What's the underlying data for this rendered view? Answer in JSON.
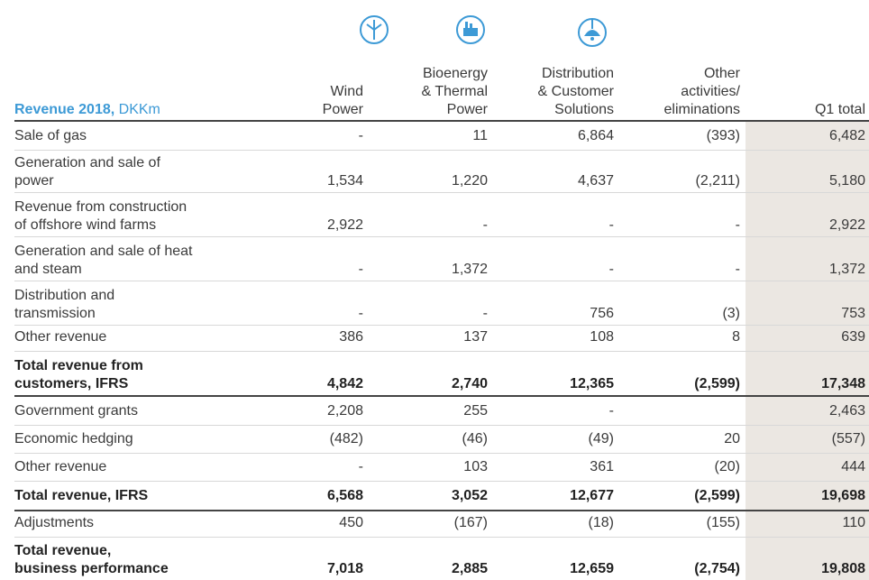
{
  "table": {
    "title": "Revenue 2018,",
    "unit": "DKKm",
    "columns": [
      [
        "Wind",
        "Power"
      ],
      [
        "Bioenergy",
        "& Thermal",
        "Power"
      ],
      [
        "Distribution",
        "& Customer",
        "Solutions"
      ],
      [
        "Other",
        "activities/",
        "eliminations"
      ],
      [
        "Q1 total"
      ]
    ],
    "rows": [
      {
        "label": [
          "Sale of gas"
        ],
        "cells": [
          "-",
          "11",
          "6,864",
          "(393)",
          "6,482"
        ]
      },
      {
        "label": [
          "Generation and sale of",
          "power"
        ],
        "cells": [
          "1,534",
          "1,220",
          "4,637",
          "(2,211)",
          "5,180"
        ]
      },
      {
        "label": [
          "Revenue from construction",
          "of offshore wind farms"
        ],
        "cells": [
          "2,922",
          "-",
          "-",
          "-",
          "2,922"
        ]
      },
      {
        "label": [
          "Generation and sale of heat",
          "and steam"
        ],
        "cells": [
          "-",
          "1,372",
          "-",
          "-",
          "1,372"
        ]
      },
      {
        "label": [
          "Distribution and",
          "transmission"
        ],
        "cells": [
          "-",
          "-",
          "756",
          "(3)",
          "753"
        ]
      },
      {
        "label": [
          "Other revenue"
        ],
        "cells": [
          "386",
          "137",
          "108",
          "8",
          "639"
        ]
      },
      {
        "label": [
          "Total revenue from",
          "customers, IFRS"
        ],
        "cells": [
          "4,842",
          "2,740",
          "12,365",
          "(2,599)",
          "17,348"
        ],
        "bold": true
      },
      {
        "label": [
          "Government grants"
        ],
        "cells": [
          "2,208",
          "255",
          "-",
          null,
          "2,463"
        ]
      },
      {
        "label": [
          "Economic hedging"
        ],
        "cells": [
          "(482)",
          "(46)",
          "(49)",
          "20",
          "(557)"
        ]
      },
      {
        "label": [
          "Other revenue"
        ],
        "cells": [
          "-",
          "103",
          "361",
          "(20)",
          "444"
        ]
      },
      {
        "label": [
          "Total revenue, IFRS"
        ],
        "cells": [
          "6,568",
          "3,052",
          "12,677",
          "(2,599)",
          "19,698"
        ],
        "bold": true
      },
      {
        "label": [
          "Adjustments"
        ],
        "cells": [
          "450",
          "(167)",
          "(18)",
          "(155)",
          "110"
        ]
      },
      {
        "label": [
          "Total revenue,",
          "business performance"
        ],
        "cells": [
          "7,018",
          "2,885",
          "12,659",
          "(2,754)",
          "19,808"
        ],
        "bold": true
      }
    ]
  }
}
